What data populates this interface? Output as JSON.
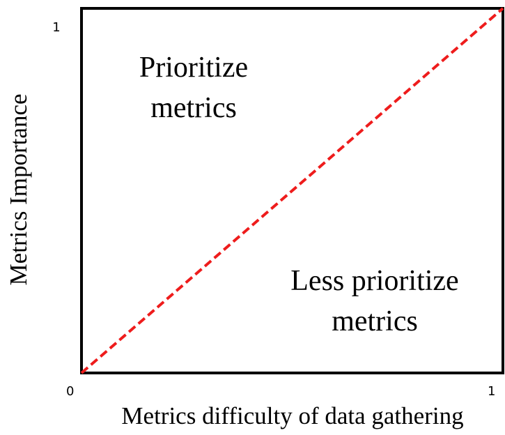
{
  "chart_data": {
    "type": "line",
    "x_label": "Metrics difficulty of data gathering",
    "y_label": "Metrics Importance",
    "x": [
      0,
      1
    ],
    "values": [
      0,
      1
    ],
    "color": "#ee1c1c",
    "dashed": true,
    "xlim": [
      0,
      1
    ],
    "ylim": [
      0,
      1
    ],
    "xticks": [
      0,
      1
    ],
    "yticks": [
      1
    ],
    "annotations": [
      "Prioritize metrics",
      "Less prioritize metrics"
    ]
  }
}
